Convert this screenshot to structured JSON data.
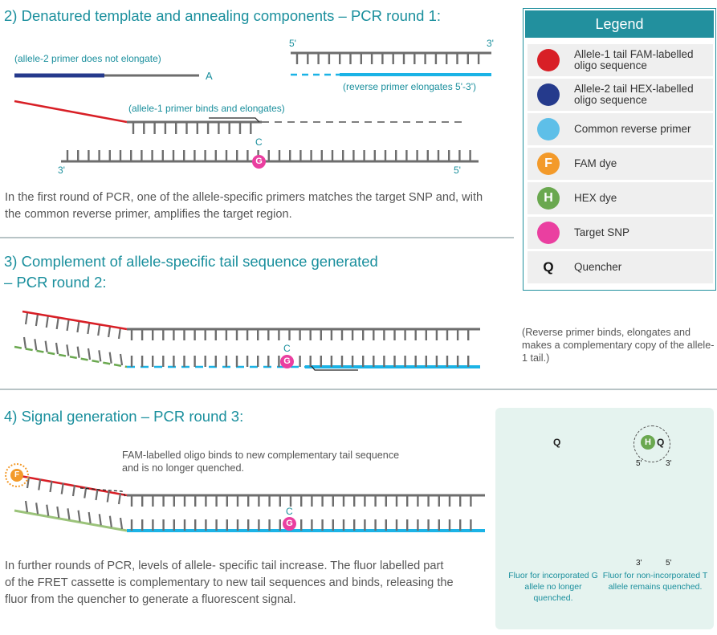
{
  "section2": {
    "title": "2) Denatured template and annealing components – PCR round 1:",
    "allele2_note": "(allele-2 primer does not elongate)",
    "allele2_base": "A",
    "reverse_5": "5'",
    "reverse_3": "3'",
    "reverse_note": "(reverse primer elongates 5'-3')",
    "allele1_note": "(allele-1 primer binds and elongates)",
    "snp_base_top": "C",
    "snp_base_bottom": "G",
    "template_3": "3'",
    "template_5": "5'",
    "paragraph": "In the first round of PCR, one of the allele-specific primers matches the target SNP and, with the common reverse primer, amplifies the target region."
  },
  "section3": {
    "title_line1": "3) Complement of allele-specific tail sequence generated",
    "title_line2": "– PCR round 2:",
    "snp_base_top": "C",
    "snp_base_bottom": "G",
    "note": "(Reverse primer binds, elongates and makes a complementary copy of the allele-1 tail.)"
  },
  "section4": {
    "title": "4) Signal generation – PCR round 3:",
    "fam_note": "FAM-labelled oligo binds to new complementary tail sequence and is no longer quenched.",
    "fam_dye": "F",
    "snp_base_top": "C",
    "snp_base_bottom": "G",
    "paragraph": "In further rounds of PCR, levels of allele- specific tail increase. The fluor labelled part of the FRET cassette is complementary to new tail sequences and binds, releasing the fluor from the quencher to generate a fluorescent signal."
  },
  "fret": {
    "left_q": "Q",
    "right_h": "H",
    "right_q": "Q",
    "right_5top": "5'",
    "right_3top": "3'",
    "right_3bottom": "3'",
    "right_5bottom": "5'",
    "left_caption": "Fluor for incorporated G allele no longer quenched.",
    "right_caption": "Fluor for non-incorporated T allele remains quenched."
  },
  "legend": {
    "title": "Legend",
    "items": [
      {
        "symbol": "",
        "color": "#d81f26",
        "label": "Allele-1 tail FAM-labelled oligo sequence"
      },
      {
        "symbol": "",
        "color": "#253a8c",
        "label": "Allele-2 tail HEX-labelled oligo sequence"
      },
      {
        "symbol": "",
        "color": "#5ebfe8",
        "label": "Common reverse primer"
      },
      {
        "symbol": "F",
        "color": "#f39a2a",
        "label": "FAM dye"
      },
      {
        "symbol": "H",
        "color": "#6aa84f",
        "label": "HEX dye"
      },
      {
        "symbol": "",
        "color": "#ea3fa0",
        "label": "Target SNP"
      },
      {
        "symbol": "Q",
        "color": "",
        "label": "Quencher"
      }
    ]
  },
  "colors": {
    "teal": "#1a8f9d",
    "grey_strand": "#6d6d6d",
    "allele1_red": "#d81f26",
    "allele2_blue": "#253a8c",
    "reverse_cyan": "#1bb3e6",
    "hex_green": "#6aa84f",
    "snp_pink": "#ea3fa0",
    "fam_orange": "#f39a2a"
  }
}
